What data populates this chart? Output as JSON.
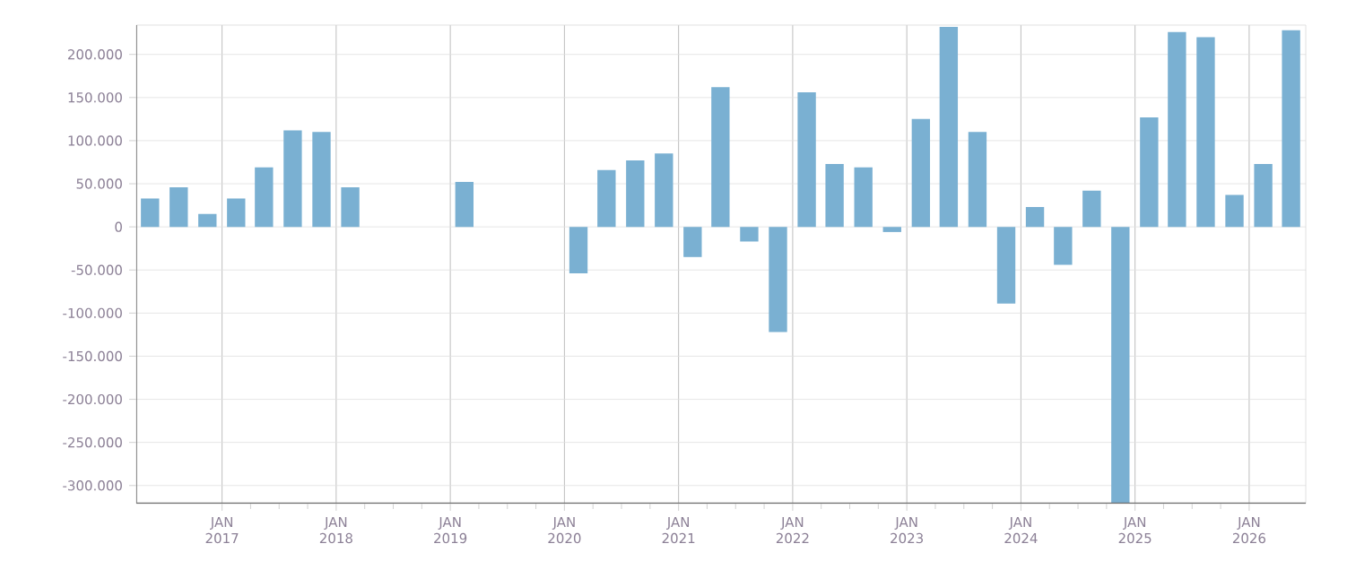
{
  "chart_data": {
    "type": "bar",
    "x": [
      "2016-05-15",
      "2016-08-15",
      "2016-11-15",
      "2017-02-15",
      "2017-05-15",
      "2017-08-15",
      "2017-11-15",
      "2018-02-15",
      "2018-05-15",
      "2018-08-15",
      "2018-11-15",
      "2019-02-15",
      "2019-05-15",
      "2019-08-15",
      "2019-11-15",
      "2020-02-15",
      "2020-05-15",
      "2020-08-15",
      "2020-11-15",
      "2021-02-15",
      "2021-05-15",
      "2021-08-15",
      "2021-11-15",
      "2022-02-15",
      "2022-05-15",
      "2022-08-15",
      "2022-11-15",
      "2023-02-15",
      "2023-05-15",
      "2023-08-15",
      "2023-11-15",
      "2024-02-15",
      "2024-05-15",
      "2024-08-15",
      "2024-11-15",
      "2025-02-15",
      "2025-05-15",
      "2025-08-15",
      "2025-11-15",
      "2026-02-15",
      "2026-05-15"
    ],
    "values": [
      33000,
      46000,
      15000,
      33000,
      69000,
      112000,
      110000,
      46000,
      null,
      null,
      null,
      52000,
      null,
      null,
      null,
      -54000,
      66000,
      77000,
      85000,
      -35000,
      162000,
      -17000,
      -122000,
      156000,
      73000,
      69000,
      -6000,
      125000,
      232000,
      110000,
      -89000,
      23000,
      -44000,
      42000,
      -320000,
      127000,
      226000,
      220000,
      37000,
      73000,
      228000
    ],
    "color": "#7ab0d2",
    "xlim": [
      "2016-04-01",
      "2026-07-01"
    ],
    "xticks": [
      {
        "value": "2017-01-01",
        "label": "JAN 2017"
      },
      {
        "value": "2018-01-01",
        "label": "JAN 2018"
      },
      {
        "value": "2019-01-01",
        "label": "JAN 2019"
      },
      {
        "value": "2020-01-01",
        "label": "JAN 2020"
      },
      {
        "value": "2021-01-01",
        "label": "JAN 2021"
      },
      {
        "value": "2022-01-01",
        "label": "JAN 2022"
      },
      {
        "value": "2023-01-01",
        "label": "JAN 2023"
      },
      {
        "value": "2024-01-01",
        "label": "JAN 2024"
      },
      {
        "value": "2025-01-01",
        "label": "JAN 2025"
      },
      {
        "value": "2026-01-01",
        "label": "JAN 2026"
      }
    ],
    "ylim": [
      -321000,
      234000
    ],
    "yticks": [
      {
        "value": -300000,
        "label": "-300.000"
      },
      {
        "value": -250000,
        "label": "-250.000"
      },
      {
        "value": -200000,
        "label": "-200.000"
      },
      {
        "value": -150000,
        "label": "-150.000"
      },
      {
        "value": -100000,
        "label": "-100.000"
      },
      {
        "value": -50000,
        "label": "-50.000"
      },
      0,
      {
        "value": 50000,
        "label": "50.000"
      },
      {
        "value": 100000,
        "label": "100.000"
      },
      {
        "value": 150000,
        "label": "150.000"
      },
      {
        "value": 200000,
        "label": "200.000"
      }
    ],
    "grid": true
  }
}
